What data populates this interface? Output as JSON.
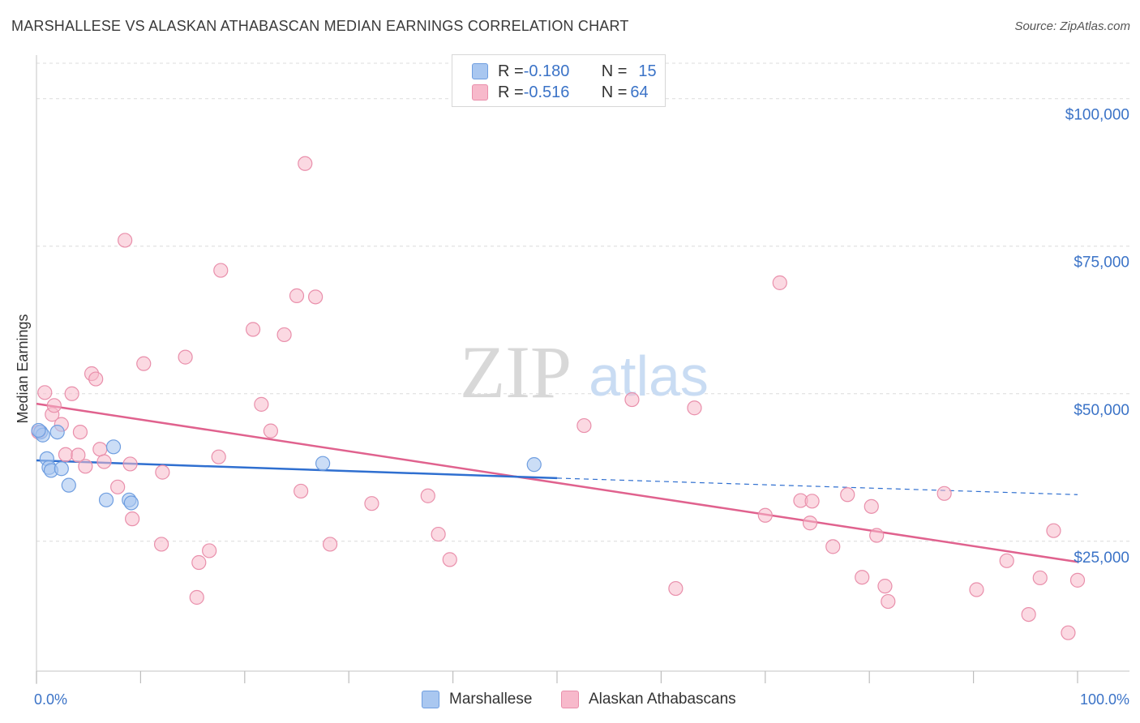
{
  "header": {
    "title": "MARSHALLESE VS ALASKAN ATHABASCAN MEDIAN EARNINGS CORRELATION CHART",
    "source": "Source: ZipAtlas.com"
  },
  "watermark": {
    "zip": "ZIP",
    "atlas": "atlas"
  },
  "legend": {
    "rows": [
      {
        "r_label": "R = ",
        "r_value": "-0.180",
        "n_label": "N = ",
        "n_value": "15",
        "color": "#a9c7f0"
      },
      {
        "r_label": "R = ",
        "r_value": "-0.516",
        "n_label": "N = ",
        "n_value": "64",
        "color": "#f7b9cb"
      }
    ]
  },
  "bottom_legend": [
    "Marshallese",
    "Alaskan Athabascans"
  ],
  "colors": {
    "blue_fill": "#a9c7f0",
    "blue_stroke": "#6f9ee0",
    "blue_line": "#2f6fd0",
    "pink_fill": "#f7b9cb",
    "pink_stroke": "#e98fab",
    "pink_line": "#e0628e",
    "axis_label": "#3b73c7",
    "grid": "#dcdcdc"
  },
  "chart_data": {
    "type": "scatter",
    "title": "MARSHALLESE VS ALASKAN ATHABASCAN MEDIAN EARNINGS CORRELATION CHART",
    "xlabel": "",
    "ylabel": "Median Earnings",
    "xlim": [
      0,
      100
    ],
    "ylim": [
      3000,
      106000
    ],
    "x_tick_labels": [
      "0.0%",
      "100.0%"
    ],
    "y_ticks": [
      25000,
      50000,
      75000,
      100000
    ],
    "y_tick_labels": [
      "$25,000",
      "$50,000",
      "$75,000",
      "$100,000"
    ],
    "grid": true,
    "legend_position": "top-center",
    "series": [
      {
        "name": "Marshallese",
        "points": [
          [
            0.4,
            43500
          ],
          [
            0.6,
            43000
          ],
          [
            1.0,
            39000
          ],
          [
            1.2,
            37500
          ],
          [
            1.4,
            37000
          ],
          [
            2.0,
            43500
          ],
          [
            2.4,
            37300
          ],
          [
            3.1,
            34500
          ],
          [
            6.7,
            32000
          ],
          [
            7.4,
            41000
          ],
          [
            8.9,
            32000
          ],
          [
            9.1,
            31500
          ],
          [
            27.5,
            38200
          ],
          [
            47.8,
            38000
          ],
          [
            0.2,
            43800
          ]
        ],
        "trend": {
          "x0": 0,
          "y0": 38700,
          "x1": 50,
          "y1": 35700,
          "dashed_to_x": 100,
          "dashed_to_y": 32900
        }
      },
      {
        "name": "Alaskan Athabascans",
        "points": [
          [
            0.2,
            43500
          ],
          [
            0.8,
            50200
          ],
          [
            1.5,
            46500
          ],
          [
            1.7,
            48000
          ],
          [
            2.4,
            44800
          ],
          [
            2.8,
            39700
          ],
          [
            3.4,
            50000
          ],
          [
            4.0,
            39600
          ],
          [
            4.2,
            43500
          ],
          [
            4.7,
            37700
          ],
          [
            5.3,
            53400
          ],
          [
            5.7,
            52500
          ],
          [
            6.1,
            40600
          ],
          [
            6.5,
            38500
          ],
          [
            7.8,
            34200
          ],
          [
            8.5,
            76000
          ],
          [
            9.0,
            38100
          ],
          [
            9.2,
            28800
          ],
          [
            10.3,
            55100
          ],
          [
            12.0,
            24500
          ],
          [
            12.1,
            36700
          ],
          [
            14.3,
            56200
          ],
          [
            15.4,
            15500
          ],
          [
            15.6,
            21400
          ],
          [
            16.6,
            23400
          ],
          [
            17.5,
            39300
          ],
          [
            17.7,
            70900
          ],
          [
            20.8,
            60900
          ],
          [
            21.6,
            48200
          ],
          [
            22.5,
            43700
          ],
          [
            23.8,
            60000
          ],
          [
            25.0,
            66600
          ],
          [
            25.4,
            33500
          ],
          [
            25.8,
            89000
          ],
          [
            26.8,
            66400
          ],
          [
            28.2,
            24500
          ],
          [
            32.2,
            31400
          ],
          [
            37.6,
            32700
          ],
          [
            38.6,
            26200
          ],
          [
            39.7,
            21900
          ],
          [
            52.6,
            44600
          ],
          [
            57.2,
            49000
          ],
          [
            61.4,
            17000
          ],
          [
            63.2,
            47600
          ],
          [
            70.0,
            29400
          ],
          [
            71.4,
            68800
          ],
          [
            73.4,
            31900
          ],
          [
            74.3,
            28100
          ],
          [
            74.5,
            31800
          ],
          [
            76.5,
            24100
          ],
          [
            77.9,
            32900
          ],
          [
            79.3,
            18900
          ],
          [
            80.2,
            30900
          ],
          [
            80.7,
            26000
          ],
          [
            81.5,
            17400
          ],
          [
            81.8,
            14800
          ],
          [
            87.2,
            33100
          ],
          [
            90.3,
            16800
          ],
          [
            93.2,
            21700
          ],
          [
            95.3,
            12600
          ],
          [
            96.4,
            18800
          ],
          [
            97.7,
            26800
          ],
          [
            99.1,
            9500
          ],
          [
            100.0,
            18400
          ]
        ],
        "trend": {
          "x0": 0,
          "y0": 48300,
          "x1": 100,
          "y1": 21500
        }
      }
    ]
  }
}
